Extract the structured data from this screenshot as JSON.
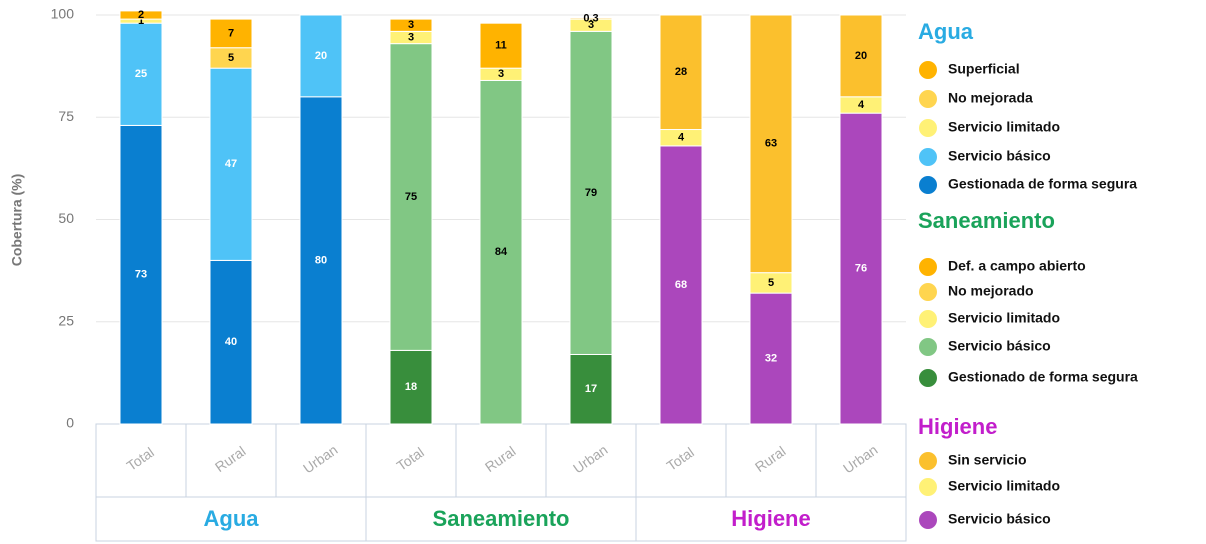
{
  "chart_data": {
    "type": "bar",
    "stacked": true,
    "ylabel": "Cobertura (%)",
    "ylim": [
      0,
      100
    ],
    "yticks": [
      0,
      25,
      50,
      75,
      100
    ],
    "grid": true,
    "groups": [
      {
        "name": "Agua",
        "color": "#29abe2",
        "categories": [
          "Total",
          "Rural",
          "Urban"
        ],
        "series": [
          {
            "name": "Gestionada de forma segura",
            "color": "#0a7fd0",
            "label_color": "#ffffff",
            "values": [
              73,
              40,
              80
            ]
          },
          {
            "name": "Servicio básico",
            "color": "#4fc3f7",
            "label_color": "#ffffff",
            "values": [
              25,
              47,
              20
            ]
          },
          {
            "name": "Servicio limitado",
            "color": "#fff176",
            "label_color": "#000000",
            "values": [
              1,
              null,
              null
            ]
          },
          {
            "name": "No mejorada",
            "color": "#ffd54f",
            "label_color": "#000000",
            "values": [
              null,
              5,
              null
            ]
          },
          {
            "name": "Superficial",
            "color": "#ffb300",
            "label_color": "#000000",
            "values": [
              2,
              7,
              null
            ]
          }
        ]
      },
      {
        "name": "Saneamiento",
        "color": "#1aa35a",
        "categories": [
          "Total",
          "Rural",
          "Urban"
        ],
        "series": [
          {
            "name": "Gestionado de forma segura",
            "color": "#388e3c",
            "label_color": "#ffffff",
            "values": [
              18,
              null,
              17
            ]
          },
          {
            "name": "Servicio básico",
            "color": "#81c784",
            "label_color": "#000000",
            "values": [
              75,
              84,
              79
            ]
          },
          {
            "name": "Servicio limitado",
            "color": "#fff176",
            "label_color": "#000000",
            "values": [
              3,
              3,
              3
            ]
          },
          {
            "name": "No mejorado",
            "color": "#ffd54f",
            "label_color": "#000000",
            "values": [
              null,
              null,
              null
            ]
          },
          {
            "name": "Def. a campo abierto",
            "color": "#ffb300",
            "label_color": "#000000",
            "values": [
              3,
              11,
              0.3
            ]
          }
        ]
      },
      {
        "name": "Higiene",
        "color": "#c21ecb",
        "categories": [
          "Total",
          "Rural",
          "Urban"
        ],
        "series": [
          {
            "name": "Servicio básico",
            "color": "#ab47bc",
            "label_color": "#ffffff",
            "values": [
              68,
              32,
              76
            ]
          },
          {
            "name": "Servicio limitado",
            "color": "#fff176",
            "label_color": "#000000",
            "values": [
              4,
              5,
              4
            ]
          },
          {
            "name": "Sin servicio",
            "color": "#fbc02d",
            "label_color": "#000000",
            "values": [
              28,
              63,
              20
            ]
          }
        ]
      }
    ]
  }
}
